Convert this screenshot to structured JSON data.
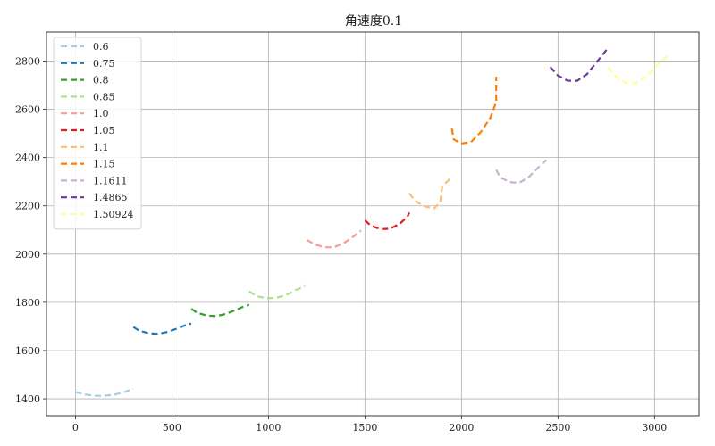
{
  "chart_data": {
    "type": "line",
    "title": "角速度0.1",
    "xlabel": "",
    "ylabel": "",
    "xlim": [
      -150,
      3230
    ],
    "ylim": [
      1330,
      2920
    ],
    "xticks": [
      0,
      500,
      1000,
      1500,
      2000,
      2500,
      3000
    ],
    "yticks": [
      1400,
      1600,
      1800,
      2000,
      2200,
      2400,
      2600,
      2800
    ],
    "grid": true,
    "legend_position": "top-left",
    "line_style": "dashed",
    "series": [
      {
        "name": "0.6",
        "color": "#a6cee3",
        "points": [
          [
            0,
            1428
          ],
          [
            50,
            1418
          ],
          [
            100,
            1413
          ],
          [
            150,
            1413
          ],
          [
            200,
            1417
          ],
          [
            250,
            1427
          ],
          [
            300,
            1442
          ]
        ]
      },
      {
        "name": "0.75",
        "color": "#1f78b4",
        "points": [
          [
            300,
            1698
          ],
          [
            330,
            1682
          ],
          [
            380,
            1672
          ],
          [
            430,
            1669
          ],
          [
            480,
            1678
          ],
          [
            530,
            1692
          ],
          [
            570,
            1705
          ],
          [
            600,
            1712
          ]
        ]
      },
      {
        "name": "0.8",
        "color": "#33a02c",
        "points": [
          [
            600,
            1773
          ],
          [
            630,
            1757
          ],
          [
            680,
            1745
          ],
          [
            730,
            1743
          ],
          [
            780,
            1752
          ],
          [
            830,
            1768
          ],
          [
            870,
            1782
          ],
          [
            900,
            1790
          ]
        ]
      },
      {
        "name": "0.85",
        "color": "#b2df8a",
        "points": [
          [
            900,
            1845
          ],
          [
            940,
            1825
          ],
          [
            990,
            1817
          ],
          [
            1040,
            1818
          ],
          [
            1090,
            1830
          ],
          [
            1140,
            1850
          ],
          [
            1190,
            1868
          ]
        ]
      },
      {
        "name": "1.0",
        "color": "#fb9a99",
        "points": [
          [
            1200,
            2058
          ],
          [
            1240,
            2040
          ],
          [
            1290,
            2028
          ],
          [
            1340,
            2028
          ],
          [
            1390,
            2045
          ],
          [
            1440,
            2072
          ],
          [
            1480,
            2098
          ]
        ]
      },
      {
        "name": "1.05",
        "color": "#e31a1c",
        "points": [
          [
            1500,
            2140
          ],
          [
            1530,
            2118
          ],
          [
            1580,
            2103
          ],
          [
            1630,
            2105
          ],
          [
            1680,
            2125
          ],
          [
            1720,
            2155
          ],
          [
            1730,
            2172
          ]
        ]
      },
      {
        "name": "1.1",
        "color": "#fdbf6f",
        "points": [
          [
            1730,
            2252
          ],
          [
            1760,
            2220
          ],
          [
            1810,
            2197
          ],
          [
            1860,
            2190
          ],
          [
            1890,
            2215
          ],
          [
            1900,
            2280
          ],
          [
            1940,
            2312
          ]
        ]
      },
      {
        "name": "1.15",
        "color": "#ff7f00",
        "points": [
          [
            1950,
            2520
          ],
          [
            1960,
            2475
          ],
          [
            2000,
            2458
          ],
          [
            2050,
            2465
          ],
          [
            2100,
            2505
          ],
          [
            2150,
            2565
          ],
          [
            2180,
            2630
          ],
          [
            2180,
            2735
          ]
        ]
      },
      {
        "name": "1.1611",
        "color": "#cab2d6",
        "points": [
          [
            2180,
            2350
          ],
          [
            2200,
            2318
          ],
          [
            2250,
            2298
          ],
          [
            2300,
            2295
          ],
          [
            2350,
            2320
          ],
          [
            2400,
            2360
          ],
          [
            2440,
            2390
          ]
        ]
      },
      {
        "name": "1.4865",
        "color": "#6a3d9a",
        "points": [
          [
            2460,
            2775
          ],
          [
            2500,
            2740
          ],
          [
            2550,
            2718
          ],
          [
            2600,
            2718
          ],
          [
            2650,
            2745
          ],
          [
            2700,
            2795
          ],
          [
            2760,
            2855
          ]
        ]
      },
      {
        "name": "1.50924",
        "color": "#ffff99",
        "points": [
          [
            2760,
            2772
          ],
          [
            2800,
            2735
          ],
          [
            2850,
            2710
          ],
          [
            2900,
            2708
          ],
          [
            2950,
            2730
          ],
          [
            3010,
            2780
          ],
          [
            3070,
            2825
          ]
        ]
      }
    ]
  }
}
